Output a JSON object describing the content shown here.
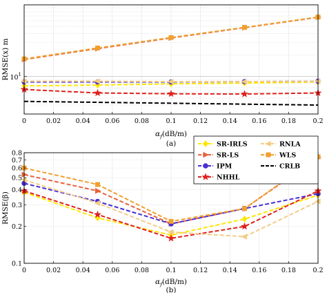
{
  "chart_data": [
    {
      "type": "line",
      "caption": "(a)",
      "xlabel": "α_f(dB/m)",
      "ylabel": "RMSE(x) m",
      "xlim": [
        0,
        0.2
      ],
      "ylim": [
        3,
        100
      ],
      "yscale": "log",
      "grid": true,
      "x_ticks": [
        "0",
        "0.02",
        "0.04",
        "0.06",
        "0.08",
        "0.1",
        "0.12",
        "0.14",
        "0.16",
        "0.18",
        "0.2"
      ],
      "y_tick_labels": [
        {
          "value": 10,
          "label": "10^1"
        }
      ],
      "x": [
        0,
        0.05,
        0.1,
        0.15,
        0.2
      ],
      "series": [
        {
          "name": "SR-IRLS",
          "color": "#FFE600",
          "marker": "diamond",
          "values": [
            7.4,
            7.6,
            7.9,
            8.1,
            8.4
          ]
        },
        {
          "name": "SR-LS",
          "color": "#E8623C",
          "marker": "triangle-right",
          "values": [
            17.3,
            24.5,
            34.5,
            48.0,
            67.0
          ]
        },
        {
          "name": "IPM",
          "color": "#4A2FD0",
          "marker": "circle",
          "values": [
            8.4,
            8.4,
            8.4,
            8.5,
            8.6
          ]
        },
        {
          "name": "NHHL",
          "color": "#E0201C",
          "marker": "star",
          "values": [
            6.6,
            5.9,
            5.75,
            5.7,
            5.9
          ]
        },
        {
          "name": "RNLA",
          "color": "#F4CC86",
          "marker": "triangle-left",
          "values": [
            8.6,
            8.6,
            8.5,
            8.5,
            8.6
          ]
        },
        {
          "name": "WLS",
          "color": "#F0A030",
          "marker": "square",
          "values": [
            17.6,
            25.0,
            35.0,
            48.5,
            67.5
          ]
        },
        {
          "name": "CRLB",
          "color": "#000000",
          "marker": "none",
          "values": [
            4.5,
            null,
            null,
            null,
            4.0
          ]
        }
      ]
    },
    {
      "type": "line",
      "caption": "(b)",
      "xlabel": "α_f(dB/m)",
      "ylabel": "RMSE(β)",
      "xlim": [
        0,
        0.2
      ],
      "ylim": [
        0.1,
        0.8
      ],
      "yscale": "log",
      "grid": true,
      "legend_position": "top",
      "x_ticks": [
        "0",
        "0.02",
        "0.04",
        "0.06",
        "0.08",
        "0.1",
        "0.12",
        "0.14",
        "0.16",
        "0.18",
        "0.2"
      ],
      "y_ticks": [
        "0.1",
        "0.2",
        "0.3",
        "0.4",
        "0.5",
        "0.6",
        "0.7",
        "0.8"
      ],
      "x": [
        0,
        0.05,
        0.1,
        0.15,
        0.2
      ],
      "series": [
        {
          "name": "SR-IRLS",
          "color": "#FFE600",
          "marker": "diamond",
          "values": [
            0.38,
            0.235,
            0.17,
            0.23,
            0.36
          ]
        },
        {
          "name": "SR-LS",
          "color": "#E8623C",
          "marker": "triangle-right",
          "values": [
            0.53,
            0.39,
            0.21,
            0.28,
            0.73
          ]
        },
        {
          "name": "IPM",
          "color": "#4A2FD0",
          "marker": "circle",
          "values": [
            0.45,
            0.32,
            0.21,
            0.28,
            0.37
          ]
        },
        {
          "name": "NHHL",
          "color": "#E0201C",
          "marker": "star",
          "values": [
            0.39,
            0.25,
            0.16,
            0.2,
            0.39
          ]
        },
        {
          "name": "RNLA",
          "color": "#F4CC86",
          "marker": "triangle-left",
          "values": [
            0.48,
            0.31,
            0.18,
            0.165,
            0.32
          ]
        },
        {
          "name": "WLS",
          "color": "#F0A030",
          "marker": "square",
          "values": [
            0.6,
            0.44,
            0.22,
            0.28,
            0.74
          ]
        },
        {
          "name": "CRLB",
          "color": "#000000",
          "marker": "none",
          "values": [
            null,
            null,
            null,
            null,
            null
          ]
        }
      ]
    }
  ]
}
